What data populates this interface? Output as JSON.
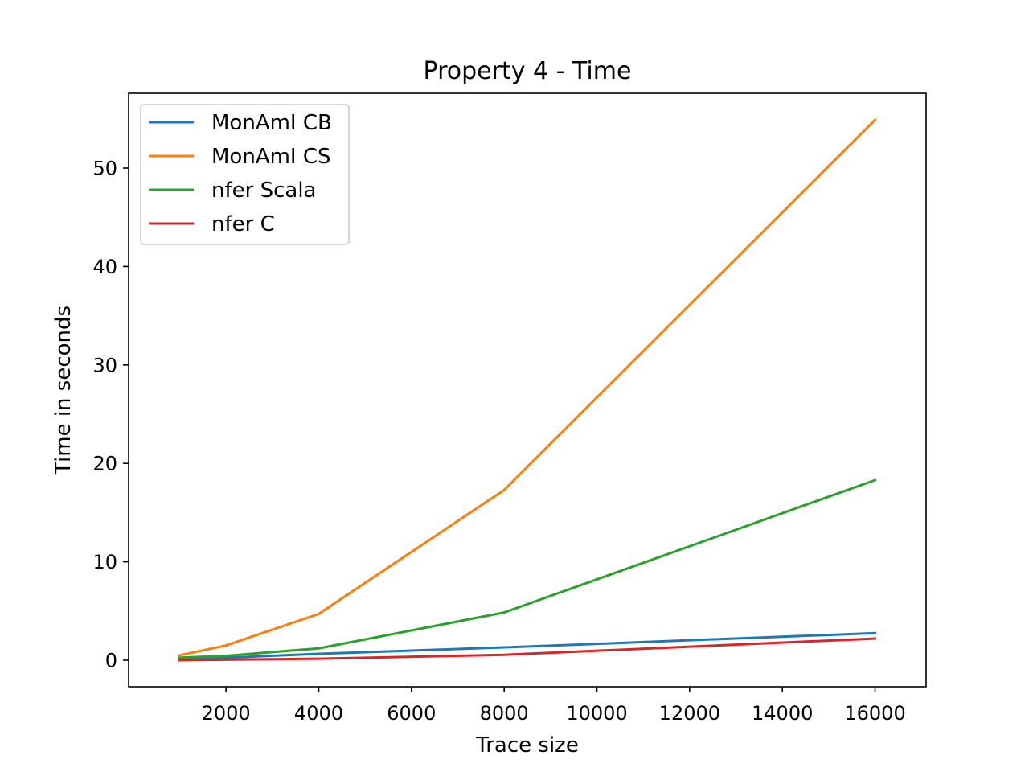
{
  "chart_data": {
    "type": "line",
    "title": "Property 4 - Time",
    "xlabel": "Trace size",
    "ylabel": "Time in seconds",
    "xlim": [
      -100,
      17100
    ],
    "ylim": [
      -2.7,
      57.6
    ],
    "xticks": [
      2000,
      4000,
      6000,
      8000,
      10000,
      12000,
      14000,
      16000
    ],
    "yticks": [
      0,
      10,
      20,
      30,
      40,
      50
    ],
    "grid": false,
    "legend_position": "upper-left",
    "x": [
      1000,
      2000,
      4000,
      8000,
      16000
    ],
    "series": [
      {
        "name": "MonAmI CB",
        "color": "#1f77b4",
        "values": [
          0.1,
          0.25,
          0.65,
          1.3,
          2.75
        ]
      },
      {
        "name": "MonAmI CS",
        "color": "#ff7f0e",
        "values": [
          0.5,
          1.5,
          4.7,
          17.3,
          54.9
        ]
      },
      {
        "name": "nfer Scala",
        "color": "#2ca02c",
        "values": [
          0.25,
          0.45,
          1.2,
          4.85,
          18.3
        ]
      },
      {
        "name": "nfer C",
        "color": "#d62728",
        "values": [
          0.0,
          0.05,
          0.15,
          0.55,
          2.2
        ]
      }
    ]
  }
}
